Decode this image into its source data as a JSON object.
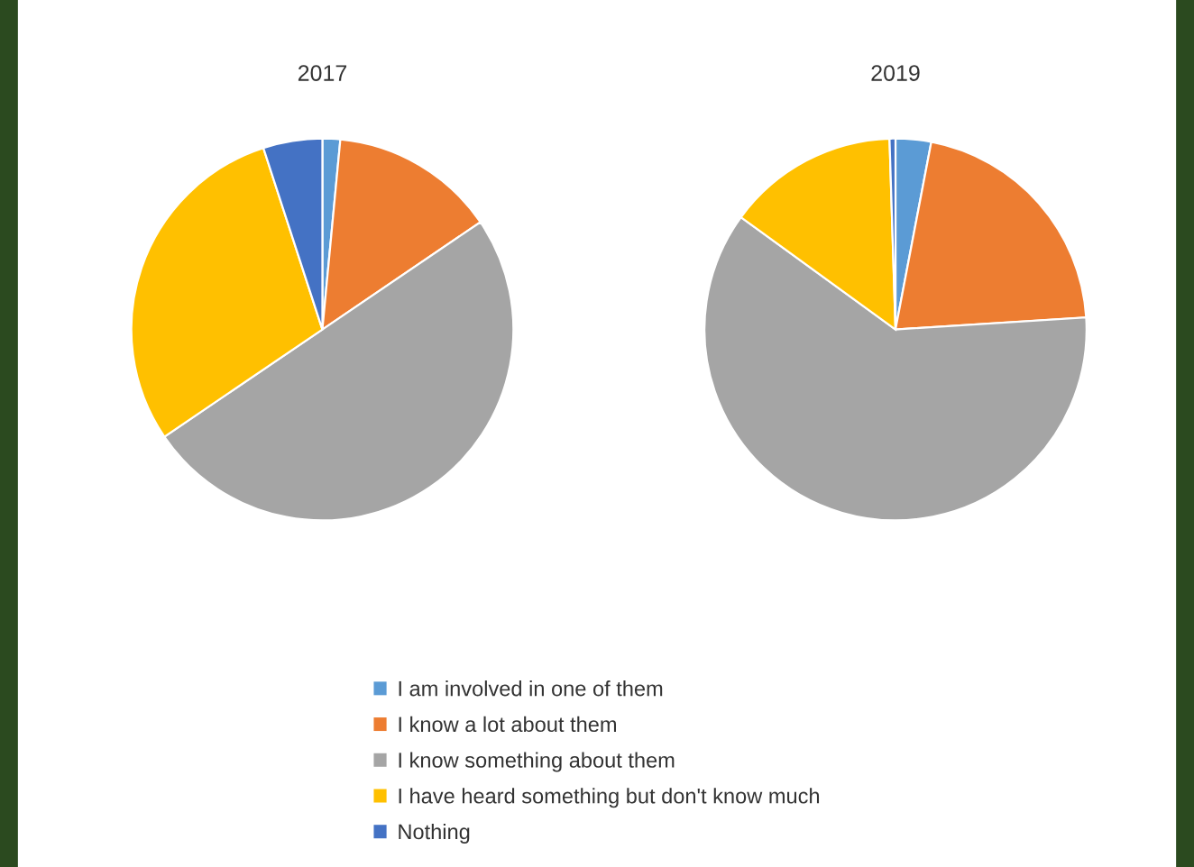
{
  "chart_data": {
    "type": "pie",
    "categories": [
      "I am involved in one of them",
      "I know a lot about them",
      "I know something about them",
      "I have heard something but don't know much",
      "Nothing"
    ],
    "colors": [
      "#5b9bd5",
      "#ed7d31",
      "#a5a5a5",
      "#ffc000",
      "#4472c4"
    ],
    "series": [
      {
        "name": "2017",
        "values": [
          1.5,
          14,
          50,
          29.5,
          5
        ]
      },
      {
        "name": "2019",
        "values": [
          3,
          21,
          61,
          14.5,
          0.5
        ]
      }
    ],
    "legend": "bottom"
  }
}
